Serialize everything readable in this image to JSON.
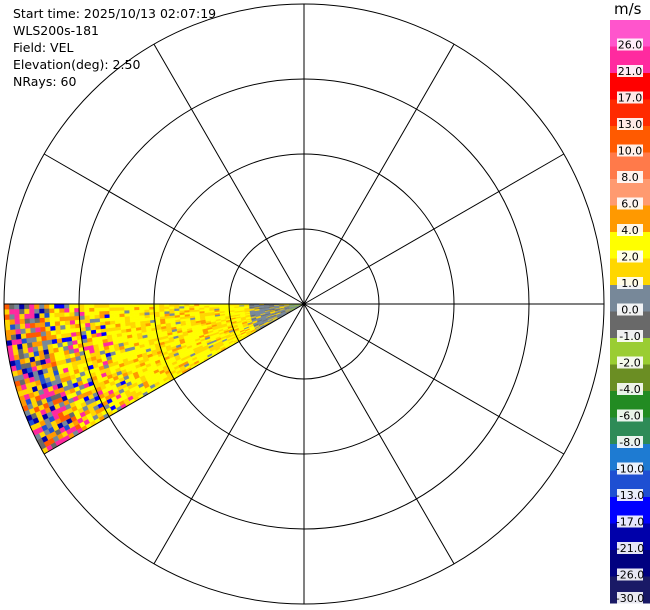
{
  "header": {
    "start_time": "Start time: 2025/10/13 02:07:19",
    "instrument": "WLS200s-181",
    "field": "Field: VEL",
    "elevation": "Elevation(deg): 2.50",
    "nrays": "NRays: 60"
  },
  "chart_data": {
    "type": "heatmap",
    "projection": "polar-ppi",
    "sector_azimuth_deg": [
      240,
      270
    ],
    "range_rings": 4,
    "radial_lines_deg": [
      0,
      30,
      60,
      90,
      120,
      150,
      180,
      210,
      240,
      270,
      300,
      330
    ],
    "colorbar": {
      "units": "m/s",
      "ticks": [
        "26.0",
        "21.0",
        "17.0",
        "13.0",
        "10.0",
        "8.0",
        "6.0",
        "4.0",
        "2.0",
        "1.0",
        "0.0",
        "-1.0",
        "-2.0",
        "-4.0",
        "-6.0",
        "-8.0",
        "-10.0",
        "-13.0",
        "-17.0",
        "-21.0",
        "-26.0",
        "-30.0"
      ],
      "colors": [
        "#ff55cc",
        "#ff2a9f",
        "#ff0000",
        "#ff2a00",
        "#ff5a00",
        "#ff7a4a",
        "#ff9a70",
        "#ff9900",
        "#ffff00",
        "#ffd700",
        "#778899",
        "#696969",
        "#9acd32",
        "#6b8e23",
        "#228b22",
        "#2e8b57",
        "#1e7bd2",
        "#1e4fd2",
        "#0000ff",
        "#0000aa",
        "#000080",
        "#1a1a66"
      ]
    }
  }
}
